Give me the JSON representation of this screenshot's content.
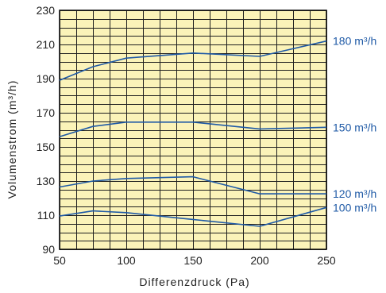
{
  "chart_data": {
    "type": "line",
    "title": "",
    "xlabel": "Differenzdruck (Pa)",
    "ylabel": "Volumenstrom (m³/h)",
    "xlim": [
      50,
      250
    ],
    "ylim": [
      90,
      230
    ],
    "x_ticks": [
      50,
      100,
      150,
      200,
      250
    ],
    "y_ticks": [
      90,
      110,
      130,
      150,
      170,
      190,
      210,
      230
    ],
    "grid": true,
    "line_color": "#1f5aa6",
    "plot_background": "#fbf3b9",
    "series": [
      {
        "name": "180 m³/h",
        "x": [
          50,
          75,
          100,
          150,
          200,
          250
        ],
        "y": [
          189,
          197,
          202,
          205,
          203,
          212
        ]
      },
      {
        "name": "150 m³/h",
        "x": [
          50,
          75,
          100,
          150,
          200,
          250
        ],
        "y": [
          156,
          162,
          164.5,
          164.5,
          160.5,
          161.5
        ]
      },
      {
        "name": "120 m³/h",
        "x": [
          50,
          75,
          100,
          150,
          200,
          250
        ],
        "y": [
          126.5,
          130,
          131.5,
          132.5,
          122.5,
          122.5
        ]
      },
      {
        "name": "100 m³/h",
        "x": [
          50,
          75,
          100,
          150,
          200,
          250
        ],
        "y": [
          109.5,
          112.5,
          111.5,
          107.5,
          103.5,
          114.5
        ]
      }
    ]
  }
}
